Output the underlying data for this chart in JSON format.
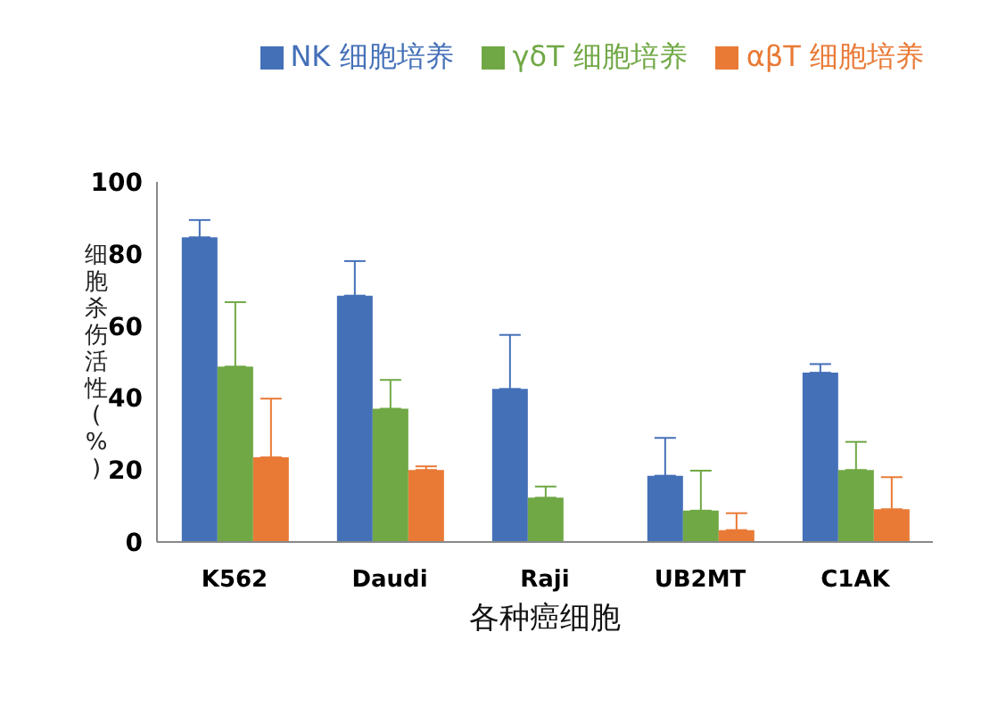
{
  "chart_data": {
    "type": "bar",
    "xlabel": "各种癌细胞",
    "ylabel": "细胞杀伤活性(%)",
    "categories": [
      "K562",
      "Daudi",
      "Raji",
      "UB2MT",
      "C1AK"
    ],
    "series": [
      {
        "name": "NK 细胞培养",
        "color": "#4470b8",
        "values": [
          84.6,
          68.4,
          42.5,
          18.4,
          47
        ],
        "errors": [
          [
            84.6,
            89.4
          ],
          [
            68.4,
            78
          ],
          [
            42.5,
            57.5
          ],
          [
            18.4,
            28.9
          ],
          [
            47,
            49.4
          ]
        ]
      },
      {
        "name": "γδT 细胞培养",
        "color": "#70a845",
        "values": [
          48.7,
          37,
          12.3,
          8.7,
          20
        ],
        "errors": [
          [
            48.7,
            66.6
          ],
          [
            37,
            45
          ],
          [
            12.3,
            15.4
          ],
          [
            8.7,
            19.8
          ],
          [
            20,
            27.8
          ]
        ]
      },
      {
        "name": "αβT 细胞培养",
        "color": "#e97a36",
        "values": [
          23.5,
          20,
          null,
          3.3,
          9.1
        ],
        "errors": [
          [
            23.5,
            39.8
          ],
          [
            20,
            21
          ],
          null,
          [
            3.3,
            8
          ],
          [
            9.1,
            18
          ]
        ]
      }
    ],
    "ylim": [
      0,
      100
    ],
    "yticks": [
      0,
      20,
      40,
      60,
      80,
      100
    ],
    "grid": false,
    "legend": "top right"
  }
}
